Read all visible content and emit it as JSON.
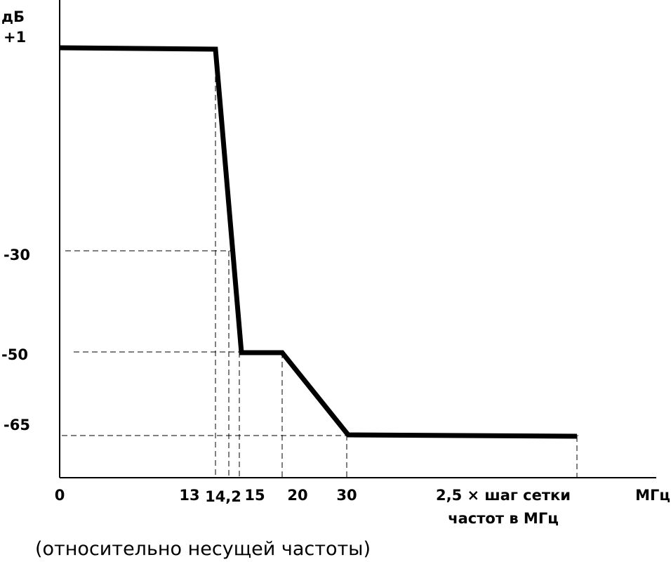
{
  "y_axis": {
    "unit": "дБ",
    "labels": [
      "+1",
      "-30",
      "-50",
      "-65"
    ]
  },
  "x_axis": {
    "unit": "МГц",
    "labels": [
      "0",
      "13",
      "14,2",
      "15",
      "20",
      "30"
    ],
    "last_label": [
      "2,5 × шаг сетки",
      "частот в МГц"
    ]
  },
  "caption": "(относительно несущей частоты)"
}
